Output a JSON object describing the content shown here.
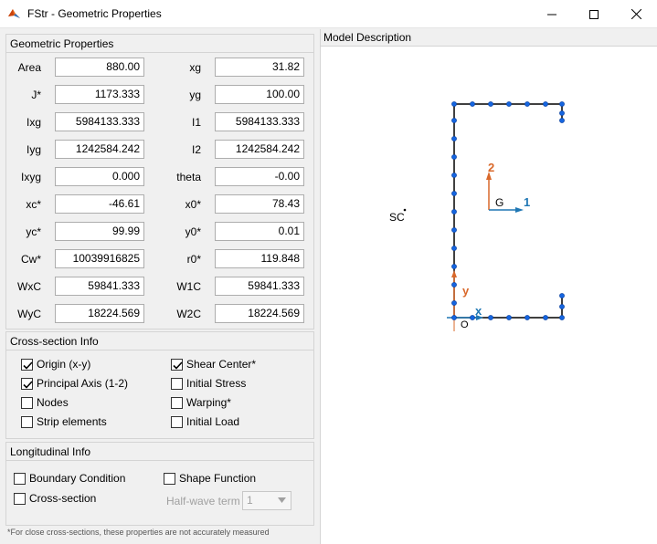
{
  "window": {
    "title": "FStr - Geometric Properties",
    "minimize_glyph": "—",
    "maximize_glyph": "☐",
    "close_glyph": "✕"
  },
  "geometric": {
    "header": "Geometric Properties",
    "rows": [
      {
        "l1": "Area",
        "v1": "880.00",
        "l2": "xg",
        "v2": "31.82"
      },
      {
        "l1": "J*",
        "v1": "1173.333",
        "l2": "yg",
        "v2": "100.00"
      },
      {
        "l1": "Ixg",
        "v1": "5984133.333",
        "l2": "I1",
        "v2": "5984133.333"
      },
      {
        "l1": "Iyg",
        "v1": "1242584.242",
        "l2": "I2",
        "v2": "1242584.242"
      },
      {
        "l1": "Ixyg",
        "v1": "0.000",
        "l2": "theta",
        "v2": "-0.00"
      },
      {
        "l1": "xc*",
        "v1": "-46.61",
        "l2": "x0*",
        "v2": "78.43"
      },
      {
        "l1": "yc*",
        "v1": "99.99",
        "l2": "y0*",
        "v2": "0.01"
      },
      {
        "l1": "Cw*",
        "v1": "10039916825",
        "l2": "r0*",
        "v2": "119.848"
      },
      {
        "l1": "WxC",
        "v1": "59841.333",
        "l2": "W1C",
        "v2": "59841.333"
      },
      {
        "l1": "WyC",
        "v1": "18224.569",
        "l2": "W2C",
        "v2": "18224.569"
      }
    ]
  },
  "cross_section": {
    "header": "Cross-section Info",
    "items": [
      {
        "label": "Origin (x-y)",
        "checked": true
      },
      {
        "label": "Shear Center*",
        "checked": true
      },
      {
        "label": "Principal Axis (1-2)",
        "checked": true
      },
      {
        "label": "Initial Stress",
        "checked": false
      },
      {
        "label": "Nodes",
        "checked": false
      },
      {
        "label": "Warping*",
        "checked": false
      },
      {
        "label": "Strip elements",
        "checked": false
      },
      {
        "label": "Initial Load",
        "checked": false
      }
    ]
  },
  "longitudinal": {
    "header": "Longitudinal Info",
    "items": [
      {
        "label": "Boundary Condition",
        "checked": false
      },
      {
        "label": "Shape Function",
        "checked": false
      },
      {
        "label": "Cross-section",
        "checked": false
      }
    ],
    "halfwave_label": "Half-wave term",
    "halfwave_value": "1"
  },
  "footnote": "*For close cross-sections, these properties are not accurately measured",
  "model": {
    "title": "Model Description",
    "sc_label": "SC",
    "axis2_label": "2",
    "axis1_label": "1",
    "g_label": "G",
    "y_label": "y",
    "x_label": "x",
    "o_label": "O"
  }
}
